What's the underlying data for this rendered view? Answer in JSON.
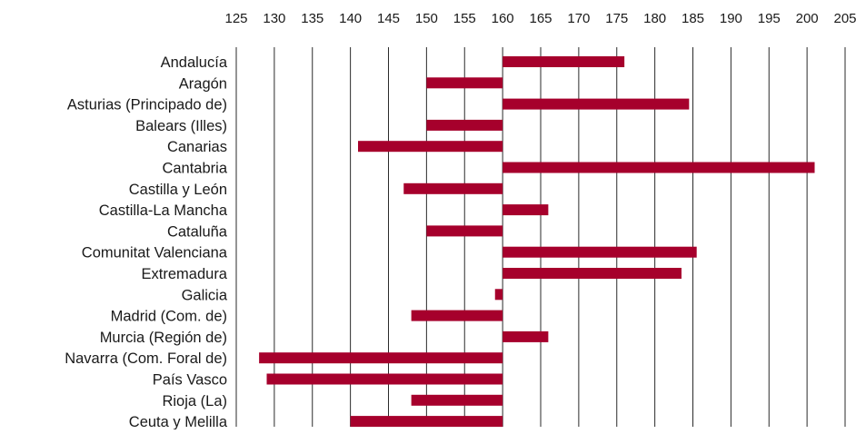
{
  "chart_data": {
    "type": "bar",
    "orientation": "horizontal",
    "baseline": 160,
    "xlim": [
      125,
      205
    ],
    "x_ticks": [
      "125",
      "130",
      "135",
      "140",
      "145",
      "150",
      "155",
      "160",
      "165",
      "170",
      "175",
      "180",
      "185",
      "190",
      "195",
      "200",
      "205"
    ],
    "x_tick_values": [
      125,
      130,
      135,
      140,
      145,
      150,
      155,
      160,
      165,
      170,
      175,
      180,
      185,
      190,
      195,
      200,
      205
    ],
    "x_axis_position": "top",
    "grid": "vertical",
    "bar_color": "#a6002c",
    "categories": [
      "Andalucía",
      "Aragón",
      "Asturias (Principado de)",
      "Balears (Illes)",
      "Canarias",
      "Cantabria",
      "Castilla y León",
      "Castilla-La Mancha",
      "Cataluña",
      "Comunitat Valenciana",
      "Extremadura",
      "Galicia",
      "Madrid (Com. de)",
      "Murcia (Región de)",
      "Navarra (Com. Foral de)",
      "País Vasco",
      "Rioja (La)",
      "Ceuta y Melilla"
    ],
    "values": [
      176,
      150,
      184.5,
      150,
      141,
      201,
      147,
      166,
      150,
      185.5,
      183.5,
      159,
      148,
      166,
      128,
      129,
      148,
      140
    ]
  }
}
